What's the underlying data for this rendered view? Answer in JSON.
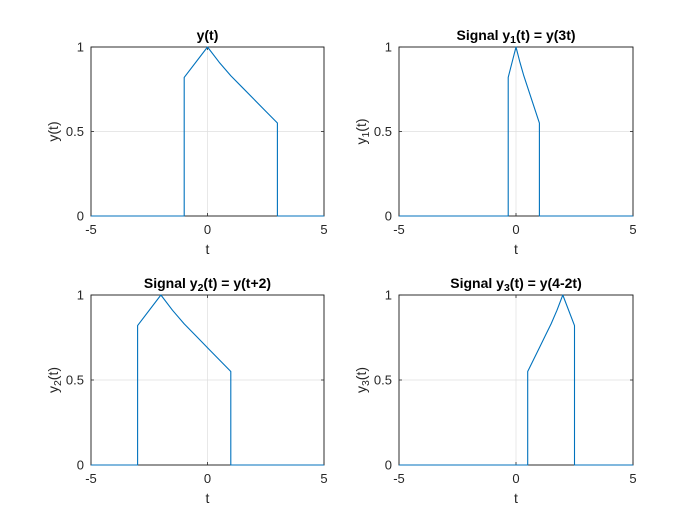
{
  "figure": {
    "accent_color": "#0072BD",
    "background_color": "#ffffff"
  },
  "chart_data": [
    {
      "type": "line",
      "title": "y(t)",
      "title_parts": [
        {
          "t": "y(t)",
          "sub": false
        }
      ],
      "xlabel": "t",
      "ylabel": "y(t)",
      "ylabel_parts": [
        {
          "t": "y(t)",
          "sub": false
        }
      ],
      "xlim": [
        -5,
        5
      ],
      "ylim": [
        0,
        1
      ],
      "xticks": [
        -5,
        0,
        5
      ],
      "yticks": [
        0,
        0.5,
        1
      ],
      "xtick_labels": [
        "-5",
        "0",
        "5"
      ],
      "ytick_labels": [
        "0",
        "0.5",
        "1"
      ],
      "grid": true,
      "series": [
        {
          "color": "#0072BD",
          "points": [
            [
              -5,
              0
            ],
            [
              -1,
              0
            ],
            [
              -1,
              0.82
            ],
            [
              0,
              1
            ],
            [
              0.5,
              0.91
            ],
            [
              1,
              0.83
            ],
            [
              1.5,
              0.76
            ],
            [
              2,
              0.69
            ],
            [
              2.5,
              0.62
            ],
            [
              3,
              0.55
            ],
            [
              3,
              0
            ],
            [
              5,
              0
            ]
          ]
        }
      ]
    },
    {
      "type": "line",
      "title": "Signal y1(t) = y(3t)",
      "title_parts": [
        {
          "t": "Signal y",
          "sub": false
        },
        {
          "t": "1",
          "sub": true
        },
        {
          "t": "(t) = y(3t)",
          "sub": false
        }
      ],
      "xlabel": "t",
      "ylabel": "y1(t)",
      "ylabel_parts": [
        {
          "t": "y",
          "sub": false
        },
        {
          "t": "1",
          "sub": true
        },
        {
          "t": "(t)",
          "sub": false
        }
      ],
      "xlim": [
        -5,
        5
      ],
      "ylim": [
        0,
        1
      ],
      "xticks": [
        -5,
        0,
        5
      ],
      "yticks": [
        0,
        0.5,
        1
      ],
      "xtick_labels": [
        "-5",
        "0",
        "5"
      ],
      "ytick_labels": [
        "0",
        "0.5",
        "1"
      ],
      "grid": true,
      "series": [
        {
          "color": "#0072BD",
          "points": [
            [
              -5,
              0
            ],
            [
              -0.333,
              0
            ],
            [
              -0.333,
              0.82
            ],
            [
              0,
              1
            ],
            [
              0.167,
              0.91
            ],
            [
              0.333,
              0.83
            ],
            [
              0.5,
              0.76
            ],
            [
              0.667,
              0.69
            ],
            [
              0.833,
              0.62
            ],
            [
              1,
              0.55
            ],
            [
              1,
              0
            ],
            [
              5,
              0
            ]
          ]
        }
      ]
    },
    {
      "type": "line",
      "title": "Signal y2(t) = y(t+2)",
      "title_parts": [
        {
          "t": "Signal y",
          "sub": false
        },
        {
          "t": "2",
          "sub": true
        },
        {
          "t": "(t) = y(t+2)",
          "sub": false
        }
      ],
      "xlabel": "t",
      "ylabel": "y2(t)",
      "ylabel_parts": [
        {
          "t": "y",
          "sub": false
        },
        {
          "t": "2",
          "sub": true
        },
        {
          "t": "(t)",
          "sub": false
        }
      ],
      "xlim": [
        -5,
        5
      ],
      "ylim": [
        0,
        1
      ],
      "xticks": [
        -5,
        0,
        5
      ],
      "yticks": [
        0,
        0.5,
        1
      ],
      "xtick_labels": [
        "-5",
        "0",
        "5"
      ],
      "ytick_labels": [
        "0",
        "0.5",
        "1"
      ],
      "grid": true,
      "series": [
        {
          "color": "#0072BD",
          "points": [
            [
              -5,
              0
            ],
            [
              -3,
              0
            ],
            [
              -3,
              0.82
            ],
            [
              -2,
              1
            ],
            [
              -1.5,
              0.91
            ],
            [
              -1,
              0.83
            ],
            [
              -0.5,
              0.76
            ],
            [
              0,
              0.69
            ],
            [
              0.5,
              0.62
            ],
            [
              1,
              0.55
            ],
            [
              1,
              0
            ],
            [
              5,
              0
            ]
          ]
        }
      ]
    },
    {
      "type": "line",
      "title": "Signal y3(t) = y(4-2t)",
      "title_parts": [
        {
          "t": "Signal y",
          "sub": false
        },
        {
          "t": "3",
          "sub": true
        },
        {
          "t": "(t) = y(4-2t)",
          "sub": false
        }
      ],
      "xlabel": "t",
      "ylabel": "y3(t)",
      "ylabel_parts": [
        {
          "t": "y",
          "sub": false
        },
        {
          "t": "3",
          "sub": true
        },
        {
          "t": "(t)",
          "sub": false
        }
      ],
      "xlim": [
        -5,
        5
      ],
      "ylim": [
        0,
        1
      ],
      "xticks": [
        -5,
        0,
        5
      ],
      "yticks": [
        0,
        0.5,
        1
      ],
      "xtick_labels": [
        "-5",
        "0",
        "5"
      ],
      "ytick_labels": [
        "0",
        "0.5",
        "1"
      ],
      "grid": true,
      "series": [
        {
          "color": "#0072BD",
          "points": [
            [
              -5,
              0
            ],
            [
              0.5,
              0
            ],
            [
              0.5,
              0.55
            ],
            [
              0.75,
              0.62
            ],
            [
              1,
              0.69
            ],
            [
              1.25,
              0.76
            ],
            [
              1.5,
              0.83
            ],
            [
              1.75,
              0.91
            ],
            [
              2,
              1
            ],
            [
              2.5,
              0.82
            ],
            [
              2.5,
              0
            ],
            [
              5,
              0
            ]
          ]
        }
      ]
    }
  ]
}
